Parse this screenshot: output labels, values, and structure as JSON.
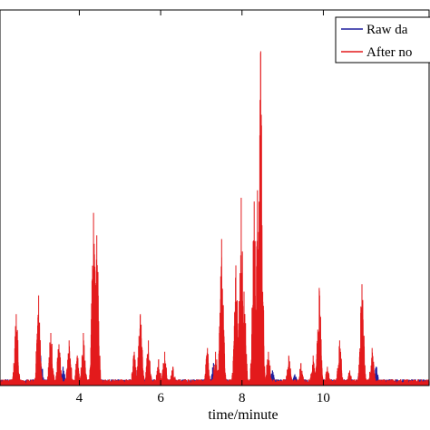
{
  "chart_data": {
    "type": "line",
    "xlabel": "time/minute",
    "ylabel": "",
    "xlim": [
      2.05,
      12.6
    ],
    "ylim": [
      0,
      1
    ],
    "grid": false,
    "legend_placement": "top-right",
    "x_ticks": [
      {
        "value": 4,
        "label": "4"
      },
      {
        "value": 6,
        "label": "6"
      },
      {
        "value": 8,
        "label": "8"
      },
      {
        "value": 10,
        "label": "10"
      }
    ],
    "baseline_level": 0.012,
    "series": [
      {
        "name": "Raw da",
        "color": "#1f1f9e",
        "peaks": [
          {
            "x": 2.45,
            "y": 0.05
          },
          {
            "x": 3.05,
            "y": 0.08
          },
          {
            "x": 3.3,
            "y": 0.06
          },
          {
            "x": 3.6,
            "y": 0.05
          },
          {
            "x": 4.35,
            "y": 0.07
          },
          {
            "x": 5.45,
            "y": 0.05
          },
          {
            "x": 6.1,
            "y": 0.04
          },
          {
            "x": 7.3,
            "y": 0.06
          },
          {
            "x": 7.95,
            "y": 0.08
          },
          {
            "x": 8.35,
            "y": 0.08
          },
          {
            "x": 8.75,
            "y": 0.04
          },
          {
            "x": 9.3,
            "y": 0.03
          },
          {
            "x": 9.85,
            "y": 0.06
          },
          {
            "x": 10.9,
            "y": 0.04
          },
          {
            "x": 11.3,
            "y": 0.05
          }
        ]
      },
      {
        "name": "After no",
        "color": "#e31a1c",
        "peaks": [
          {
            "x": 2.45,
            "y": 0.19
          },
          {
            "x": 3.0,
            "y": 0.24
          },
          {
            "x": 3.3,
            "y": 0.14
          },
          {
            "x": 3.5,
            "y": 0.11
          },
          {
            "x": 3.75,
            "y": 0.12
          },
          {
            "x": 3.95,
            "y": 0.08
          },
          {
            "x": 4.1,
            "y": 0.14
          },
          {
            "x": 4.35,
            "y": 0.46
          },
          {
            "x": 4.43,
            "y": 0.4
          },
          {
            "x": 5.35,
            "y": 0.09
          },
          {
            "x": 5.5,
            "y": 0.19
          },
          {
            "x": 5.7,
            "y": 0.12
          },
          {
            "x": 5.95,
            "y": 0.07
          },
          {
            "x": 6.1,
            "y": 0.09
          },
          {
            "x": 6.3,
            "y": 0.05
          },
          {
            "x": 7.15,
            "y": 0.1
          },
          {
            "x": 7.35,
            "y": 0.09
          },
          {
            "x": 7.5,
            "y": 0.39
          },
          {
            "x": 7.85,
            "y": 0.32
          },
          {
            "x": 7.98,
            "y": 0.5
          },
          {
            "x": 8.05,
            "y": 0.25
          },
          {
            "x": 8.3,
            "y": 0.49
          },
          {
            "x": 8.38,
            "y": 0.52
          },
          {
            "x": 8.46,
            "y": 0.89
          },
          {
            "x": 8.65,
            "y": 0.09
          },
          {
            "x": 9.15,
            "y": 0.08
          },
          {
            "x": 9.45,
            "y": 0.06
          },
          {
            "x": 9.75,
            "y": 0.08
          },
          {
            "x": 9.9,
            "y": 0.26
          },
          {
            "x": 10.1,
            "y": 0.05
          },
          {
            "x": 10.4,
            "y": 0.12
          },
          {
            "x": 10.65,
            "y": 0.04
          },
          {
            "x": 10.95,
            "y": 0.27
          },
          {
            "x": 11.2,
            "y": 0.1
          }
        ]
      }
    ]
  }
}
